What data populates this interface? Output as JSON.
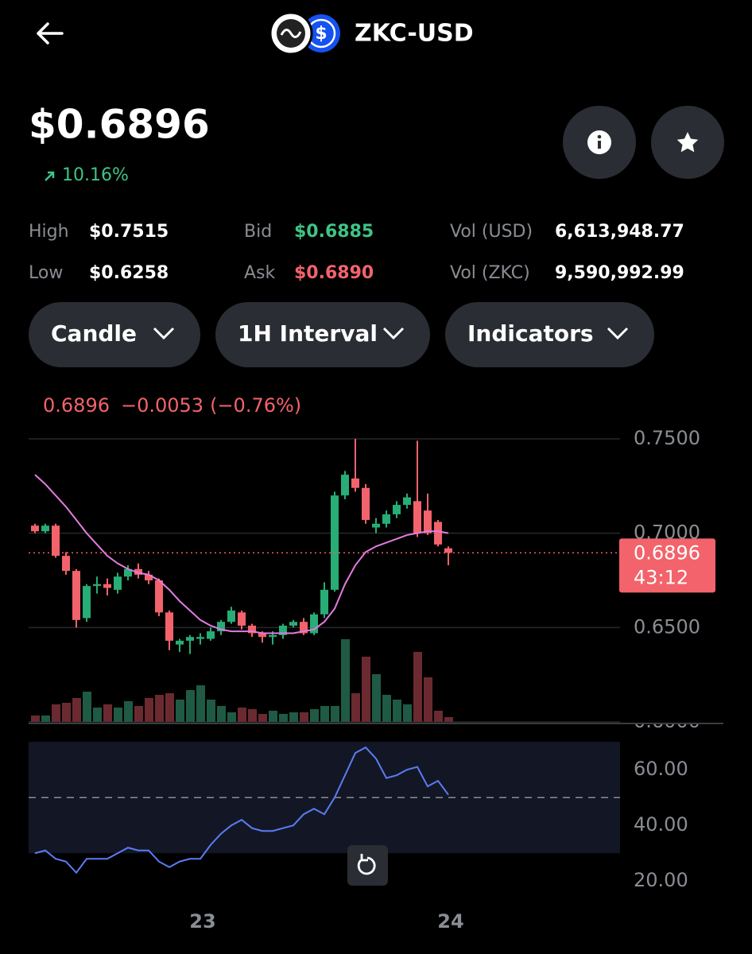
{
  "header": {
    "title": "ZKC-USD"
  },
  "price": "$0.6896",
  "change": "10.16%",
  "stats": [
    {
      "label": "High",
      "value": "$0.7515"
    },
    {
      "label": "Low",
      "value": "$0.6258"
    },
    {
      "label": "Bid",
      "value": "$0.6885"
    },
    {
      "label": "Ask",
      "value": "$0.6890"
    },
    {
      "label": "Vol (USD)",
      "value": "6,613,948.77"
    },
    {
      "label": "Vol (ZKC)",
      "value": "9,590,992.99"
    }
  ],
  "controls": [
    "Candle",
    "1H Interval",
    "Indicators"
  ],
  "chart": {
    "type": "candlestick",
    "legend": {
      "price": "0.6896",
      "change": "−0.0053",
      "percent": "(−0.76%)"
    },
    "ylim": [
      0.6,
      0.75
    ],
    "yticks": [
      {
        "value": 0.75,
        "label": "0.7500"
      },
      {
        "value": 0.7,
        "label": "0.7000"
      },
      {
        "value": 0.65,
        "label": "0.6500"
      },
      {
        "value": 0.6,
        "label": "0.6000"
      }
    ],
    "last_price": {
      "value": 0.6896,
      "label": "0.6896",
      "countdown": "43:12"
    },
    "categories": [
      null,
      null,
      null,
      null,
      null,
      null,
      null,
      null,
      null,
      null,
      null,
      null,
      null,
      null,
      null,
      null,
      "23",
      null,
      null,
      null,
      null,
      null,
      null,
      null,
      null,
      null,
      null,
      null,
      null,
      null,
      null,
      null,
      null,
      null,
      null,
      null,
      null,
      null,
      null,
      null,
      "24"
    ],
    "candles": [
      {
        "open": 0.704,
        "close": 0.701,
        "high": 0.705,
        "low": 0.7
      },
      {
        "open": 0.701,
        "close": 0.704,
        "high": 0.705,
        "low": 0.7
      },
      {
        "open": 0.704,
        "close": 0.688,
        "high": 0.705,
        "low": 0.687
      },
      {
        "open": 0.688,
        "close": 0.68,
        "high": 0.69,
        "low": 0.678
      },
      {
        "open": 0.68,
        "close": 0.654,
        "high": 0.681,
        "low": 0.65
      },
      {
        "open": 0.655,
        "close": 0.672,
        "high": 0.673,
        "low": 0.653
      },
      {
        "open": 0.672,
        "close": 0.673,
        "high": 0.677,
        "low": 0.668
      },
      {
        "open": 0.673,
        "close": 0.671,
        "high": 0.676,
        "low": 0.667
      },
      {
        "open": 0.67,
        "close": 0.677,
        "high": 0.679,
        "low": 0.668
      },
      {
        "open": 0.677,
        "close": 0.681,
        "high": 0.683,
        "low": 0.675
      },
      {
        "open": 0.681,
        "close": 0.678,
        "high": 0.684,
        "low": 0.676
      },
      {
        "open": 0.678,
        "close": 0.675,
        "high": 0.68,
        "low": 0.673
      },
      {
        "open": 0.675,
        "close": 0.658,
        "high": 0.676,
        "low": 0.656
      },
      {
        "open": 0.658,
        "close": 0.643,
        "high": 0.659,
        "low": 0.638
      },
      {
        "open": 0.641,
        "close": 0.643,
        "high": 0.644,
        "low": 0.637
      },
      {
        "open": 0.643,
        "close": 0.645,
        "high": 0.646,
        "low": 0.636
      },
      {
        "open": 0.644,
        "close": 0.645,
        "high": 0.647,
        "low": 0.641
      },
      {
        "open": 0.644,
        "close": 0.648,
        "high": 0.65,
        "low": 0.643
      },
      {
        "open": 0.648,
        "close": 0.653,
        "high": 0.654,
        "low": 0.646
      },
      {
        "open": 0.653,
        "close": 0.659,
        "high": 0.661,
        "low": 0.652
      },
      {
        "open": 0.658,
        "close": 0.651,
        "high": 0.659,
        "low": 0.649
      },
      {
        "open": 0.651,
        "close": 0.647,
        "high": 0.652,
        "low": 0.645
      },
      {
        "open": 0.647,
        "close": 0.645,
        "high": 0.648,
        "low": 0.642
      },
      {
        "open": 0.645,
        "close": 0.646,
        "high": 0.648,
        "low": 0.641
      },
      {
        "open": 0.646,
        "close": 0.651,
        "high": 0.652,
        "low": 0.644
      },
      {
        "open": 0.651,
        "close": 0.653,
        "high": 0.654,
        "low": 0.65
      },
      {
        "open": 0.653,
        "close": 0.647,
        "high": 0.655,
        "low": 0.646
      },
      {
        "open": 0.647,
        "close": 0.657,
        "high": 0.658,
        "low": 0.646
      },
      {
        "open": 0.657,
        "close": 0.67,
        "high": 0.674,
        "low": 0.655
      },
      {
        "open": 0.67,
        "close": 0.72,
        "high": 0.722,
        "low": 0.669
      },
      {
        "open": 0.72,
        "close": 0.731,
        "high": 0.733,
        "low": 0.718
      },
      {
        "open": 0.729,
        "close": 0.724,
        "high": 0.75,
        "low": 0.722
      },
      {
        "open": 0.724,
        "close": 0.707,
        "high": 0.726,
        "low": 0.705
      },
      {
        "open": 0.703,
        "close": 0.705,
        "high": 0.708,
        "low": 0.7
      },
      {
        "open": 0.705,
        "close": 0.71,
        "high": 0.712,
        "low": 0.703
      },
      {
        "open": 0.71,
        "close": 0.715,
        "high": 0.717,
        "low": 0.708
      },
      {
        "open": 0.715,
        "close": 0.719,
        "high": 0.721,
        "low": 0.713
      },
      {
        "open": 0.717,
        "close": 0.7,
        "high": 0.749,
        "low": 0.698
      },
      {
        "open": 0.712,
        "close": 0.7,
        "high": 0.721,
        "low": 0.699
      },
      {
        "open": 0.706,
        "close": 0.694,
        "high": 0.707,
        "low": 0.693
      },
      {
        "open": 0.692,
        "close": 0.6896,
        "high": 0.693,
        "low": 0.683
      }
    ],
    "moving_average": [
      0.731,
      0.726,
      0.72,
      0.714,
      0.707,
      0.7,
      0.694,
      0.688,
      0.684,
      0.681,
      0.679,
      0.678,
      0.675,
      0.67,
      0.664,
      0.659,
      0.654,
      0.651,
      0.649,
      0.648,
      0.648,
      0.648,
      0.647,
      0.647,
      0.647,
      0.647,
      0.648,
      0.649,
      0.653,
      0.66,
      0.673,
      0.683,
      0.69,
      0.693,
      0.695,
      0.697,
      0.699,
      0.7,
      0.701,
      0.701,
      0.7
    ],
    "volume": [
      8,
      8,
      22,
      24,
      30,
      38,
      18,
      22,
      18,
      26,
      20,
      30,
      34,
      36,
      28,
      40,
      46,
      28,
      20,
      12,
      18,
      16,
      10,
      14,
      10,
      12,
      12,
      16,
      20,
      20,
      104,
      36,
      82,
      60,
      34,
      28,
      22,
      88,
      56,
      14,
      6
    ],
    "rsi": {
      "ylim": [
        19.5,
        70.9
      ],
      "yticks": [
        {
          "value": 60,
          "label": "60.00"
        },
        {
          "value": 40,
          "label": "40.00"
        },
        {
          "value": 20,
          "label": "20.00"
        }
      ],
      "band": [
        30,
        70
      ],
      "midline": 50,
      "values": [
        30,
        31,
        28,
        27,
        23,
        28,
        28,
        28,
        30,
        32,
        31,
        31,
        27,
        25,
        27,
        28,
        28,
        33,
        37,
        40,
        42,
        39,
        38,
        38,
        39,
        40,
        44,
        46,
        44,
        50,
        58,
        66,
        68,
        64,
        57,
        58,
        60,
        61,
        54,
        56,
        51
      ]
    }
  }
}
